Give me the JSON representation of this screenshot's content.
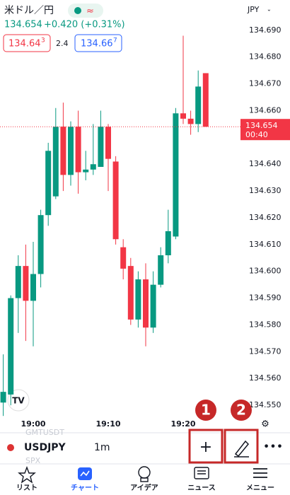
{
  "header": {
    "symbol": "米ドル／円",
    "price": "134.654",
    "change": "+0.420 (+0.31%)",
    "bid": {
      "main": "134.64",
      "pip": "3"
    },
    "spread": "2.4",
    "ask": {
      "main": "134.66",
      "pip": "7"
    },
    "currency": "JPY"
  },
  "chart_data": {
    "type": "candlestick",
    "categories": [
      null,
      null,
      null,
      null,
      "19:00",
      null,
      null,
      null,
      null,
      null,
      null,
      null,
      null,
      null,
      "19:10",
      null,
      null,
      null,
      null,
      null,
      null,
      null,
      null,
      null,
      "19:20",
      null,
      null,
      null
    ],
    "open": [
      134.551,
      134.554,
      134.59,
      134.602,
      134.589,
      134.599,
      134.621,
      134.628,
      134.654,
      134.636,
      134.654,
      134.637,
      134.638,
      134.639,
      134.654,
      134.641,
      134.609,
      134.602,
      134.582,
      134.597,
      134.579,
      134.595,
      134.606,
      134.613,
      134.659,
      134.657,
      134.655,
      134.674
    ],
    "high": [
      134.569,
      134.591,
      134.606,
      134.61,
      134.611,
      134.623,
      134.648,
      134.661,
      134.663,
      134.656,
      134.66,
      134.645,
      134.655,
      134.66,
      134.655,
      134.643,
      134.612,
      134.605,
      134.6,
      134.603,
      134.6,
      134.609,
      134.623,
      134.661,
      134.688,
      134.66,
      134.675,
      134.674
    ],
    "low": [
      134.546,
      134.55,
      134.577,
      134.574,
      134.572,
      134.594,
      134.617,
      134.627,
      134.63,
      134.632,
      134.629,
      134.634,
      134.636,
      134.639,
      134.63,
      134.61,
      134.597,
      134.58,
      134.579,
      134.572,
      134.577,
      134.594,
      134.603,
      134.612,
      134.655,
      134.651,
      134.652,
      134.654
    ],
    "close": [
      134.555,
      134.59,
      134.602,
      134.589,
      134.599,
      134.621,
      134.645,
      134.654,
      134.636,
      134.654,
      134.637,
      134.638,
      134.64,
      134.654,
      134.642,
      134.612,
      134.601,
      134.582,
      134.597,
      134.579,
      134.595,
      134.606,
      134.615,
      134.659,
      134.657,
      134.655,
      134.669,
      134.654
    ],
    "up_color": "#089981",
    "down_color": "#f23645",
    "ylim": [
      134.545,
      134.7
    ],
    "yticks": [
      {
        "value": 134.55,
        "label": "134.550"
      },
      {
        "value": 134.56,
        "label": "134.560"
      },
      {
        "value": 134.57,
        "label": "134.570"
      },
      {
        "value": 134.58,
        "label": "134.580"
      },
      {
        "value": 134.59,
        "label": "134.590"
      },
      {
        "value": 134.6,
        "label": "134.600"
      },
      {
        "value": 134.61,
        "label": "134.610"
      },
      {
        "value": 134.62,
        "label": "134.620"
      },
      {
        "value": 134.63,
        "label": "134.630"
      },
      {
        "value": 134.64,
        "label": "134.640"
      },
      {
        "value": 134.65,
        "label": "134.650"
      },
      {
        "value": 134.66,
        "label": "134.660"
      },
      {
        "value": 134.67,
        "label": "134.670"
      },
      {
        "value": 134.68,
        "label": "134.680"
      },
      {
        "value": 134.69,
        "label": "134.690"
      }
    ],
    "grid": false,
    "last_price": 134.654,
    "countdown": "00:40"
  },
  "toolbar": {
    "faded_top": "GMTUSDT",
    "ticker": "USDJPY",
    "interval": "1m",
    "faded_bottom": "SPX",
    "badges": [
      "1",
      "2"
    ]
  },
  "tabs": [
    "リスト",
    "チャート",
    "アイデア",
    "ニュース",
    "メニュー"
  ]
}
